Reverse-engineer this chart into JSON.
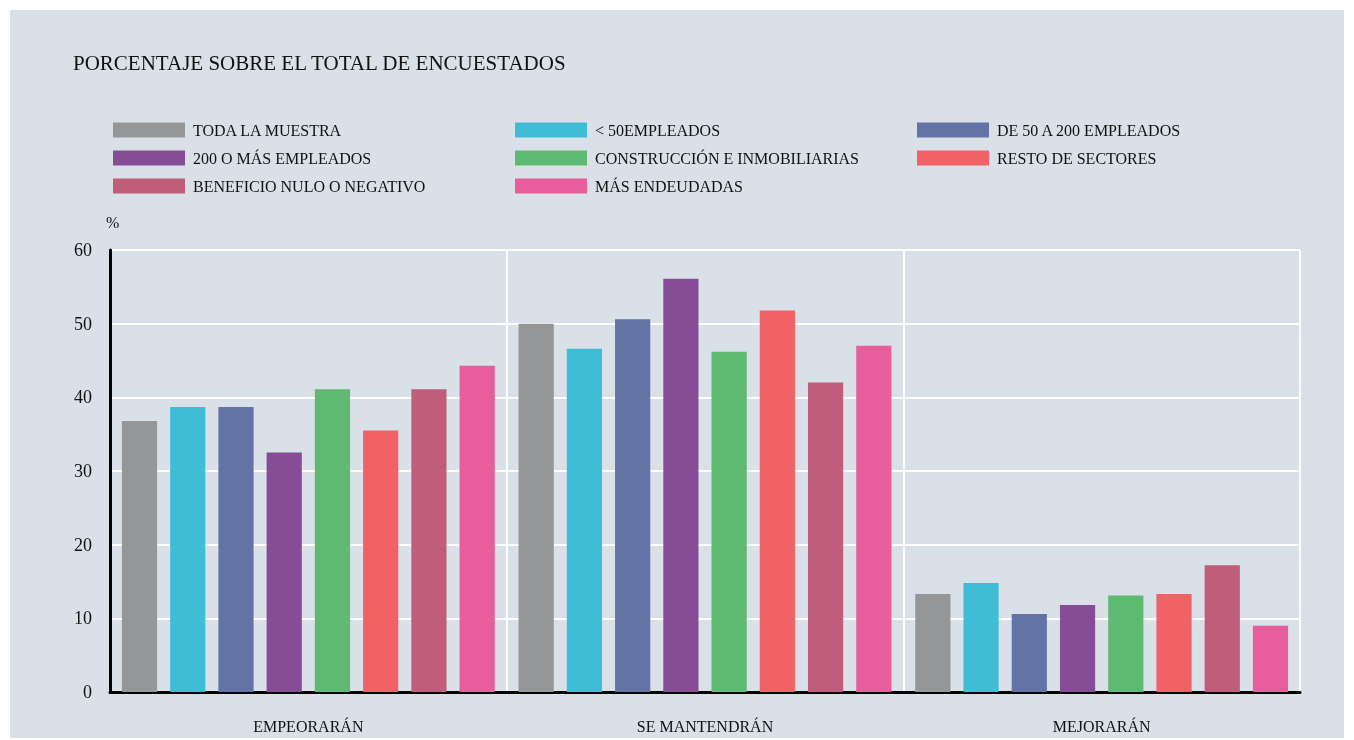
{
  "chart_data": {
    "type": "bar",
    "title": "PORCENTAJE SOBRE EL TOTAL DE ENCUESTADOS",
    "ylabel": "%",
    "categories": [
      "EMPEORARÁN",
      "SE MANTENDRÁN",
      "MEJORARÁN"
    ],
    "series": [
      {
        "name": "TODA LA MUESTRA",
        "color": "#959697",
        "values": [
          36.8,
          50.0,
          13.3
        ]
      },
      {
        "name": "< 50EMPLEADOS",
        "color": "#40bdd6",
        "values": [
          38.7,
          46.6,
          14.8
        ]
      },
      {
        "name": "DE 50 A 200 EMPLEADOS",
        "color": "#6373a6",
        "values": [
          38.7,
          50.6,
          10.6
        ]
      },
      {
        "name": "200 O MÁS EMPLEADOS",
        "color": "#874c96",
        "values": [
          32.5,
          56.1,
          11.8
        ]
      },
      {
        "name": "CONSTRUCCIÓN E INMOBILIARIAS",
        "color": "#5dba70",
        "values": [
          41.1,
          46.2,
          13.1
        ]
      },
      {
        "name": "RESTO DE SECTORES",
        "color": "#f06266",
        "values": [
          35.5,
          51.8,
          13.3
        ]
      },
      {
        "name": "BENEFICIO NULO O NEGATIVO",
        "color": "#c05d7b",
        "values": [
          41.1,
          42.0,
          17.2
        ]
      },
      {
        "name": "MÁS ENDEUDADAS",
        "color": "#e85d9c",
        "values": [
          44.3,
          47.0,
          9.0
        ]
      }
    ],
    "ylim": [
      0,
      60
    ],
    "yticks": [
      0,
      10,
      20,
      30,
      40,
      50,
      60
    ],
    "grid": true,
    "legend": "top"
  }
}
